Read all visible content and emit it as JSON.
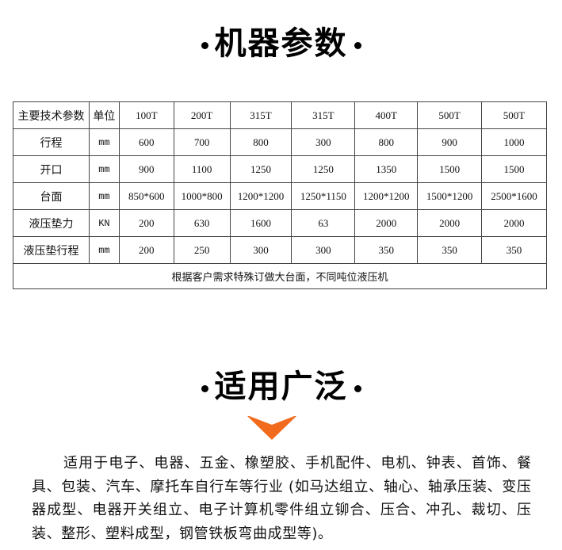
{
  "section1": {
    "title": "机器参数"
  },
  "spec_table": {
    "header": [
      "主要技术参数",
      "单位",
      "100T",
      "200T",
      "315T",
      "315T",
      "400T",
      "500T",
      "500T"
    ],
    "rows": [
      [
        "行程",
        "mm",
        "600",
        "700",
        "800",
        "300",
        "800",
        "900",
        "1000"
      ],
      [
        "开口",
        "mm",
        "900",
        "1100",
        "1250",
        "1250",
        "1350",
        "1500",
        "1500"
      ],
      [
        "台面",
        "mm",
        "850*600",
        "1000*800",
        "1200*1200",
        "1250*1150",
        "1200*1200",
        "1500*1200",
        "2500*1600"
      ],
      [
        "液压垫力",
        "KN",
        "200",
        "630",
        "1600",
        "63",
        "2000",
        "2000",
        "2000"
      ],
      [
        "液压垫行程",
        "mm",
        "200",
        "250",
        "300",
        "300",
        "350",
        "350",
        "350"
      ]
    ],
    "note": "根据客户需求特殊订做大台面，不同吨位液压机"
  },
  "section2": {
    "title": "适用广泛",
    "arrow_color": "#f26a1b",
    "arrow_icon": "chevron-down-icon",
    "lines": [
      "适用于电子、电器、五金、橡塑胶、手机配件、电机、钟表、首饰、餐",
      "具、包装、汽车、摩托车自行车等行业 (如马达组立、轴心、轴承压装、变压",
      "器成型、电器开关组立、电子计算机零件组立铆合、压合、冲孔、裁切、压",
      "装、整形、塑料成型，钢管铁板弯曲成型等)。"
    ]
  }
}
